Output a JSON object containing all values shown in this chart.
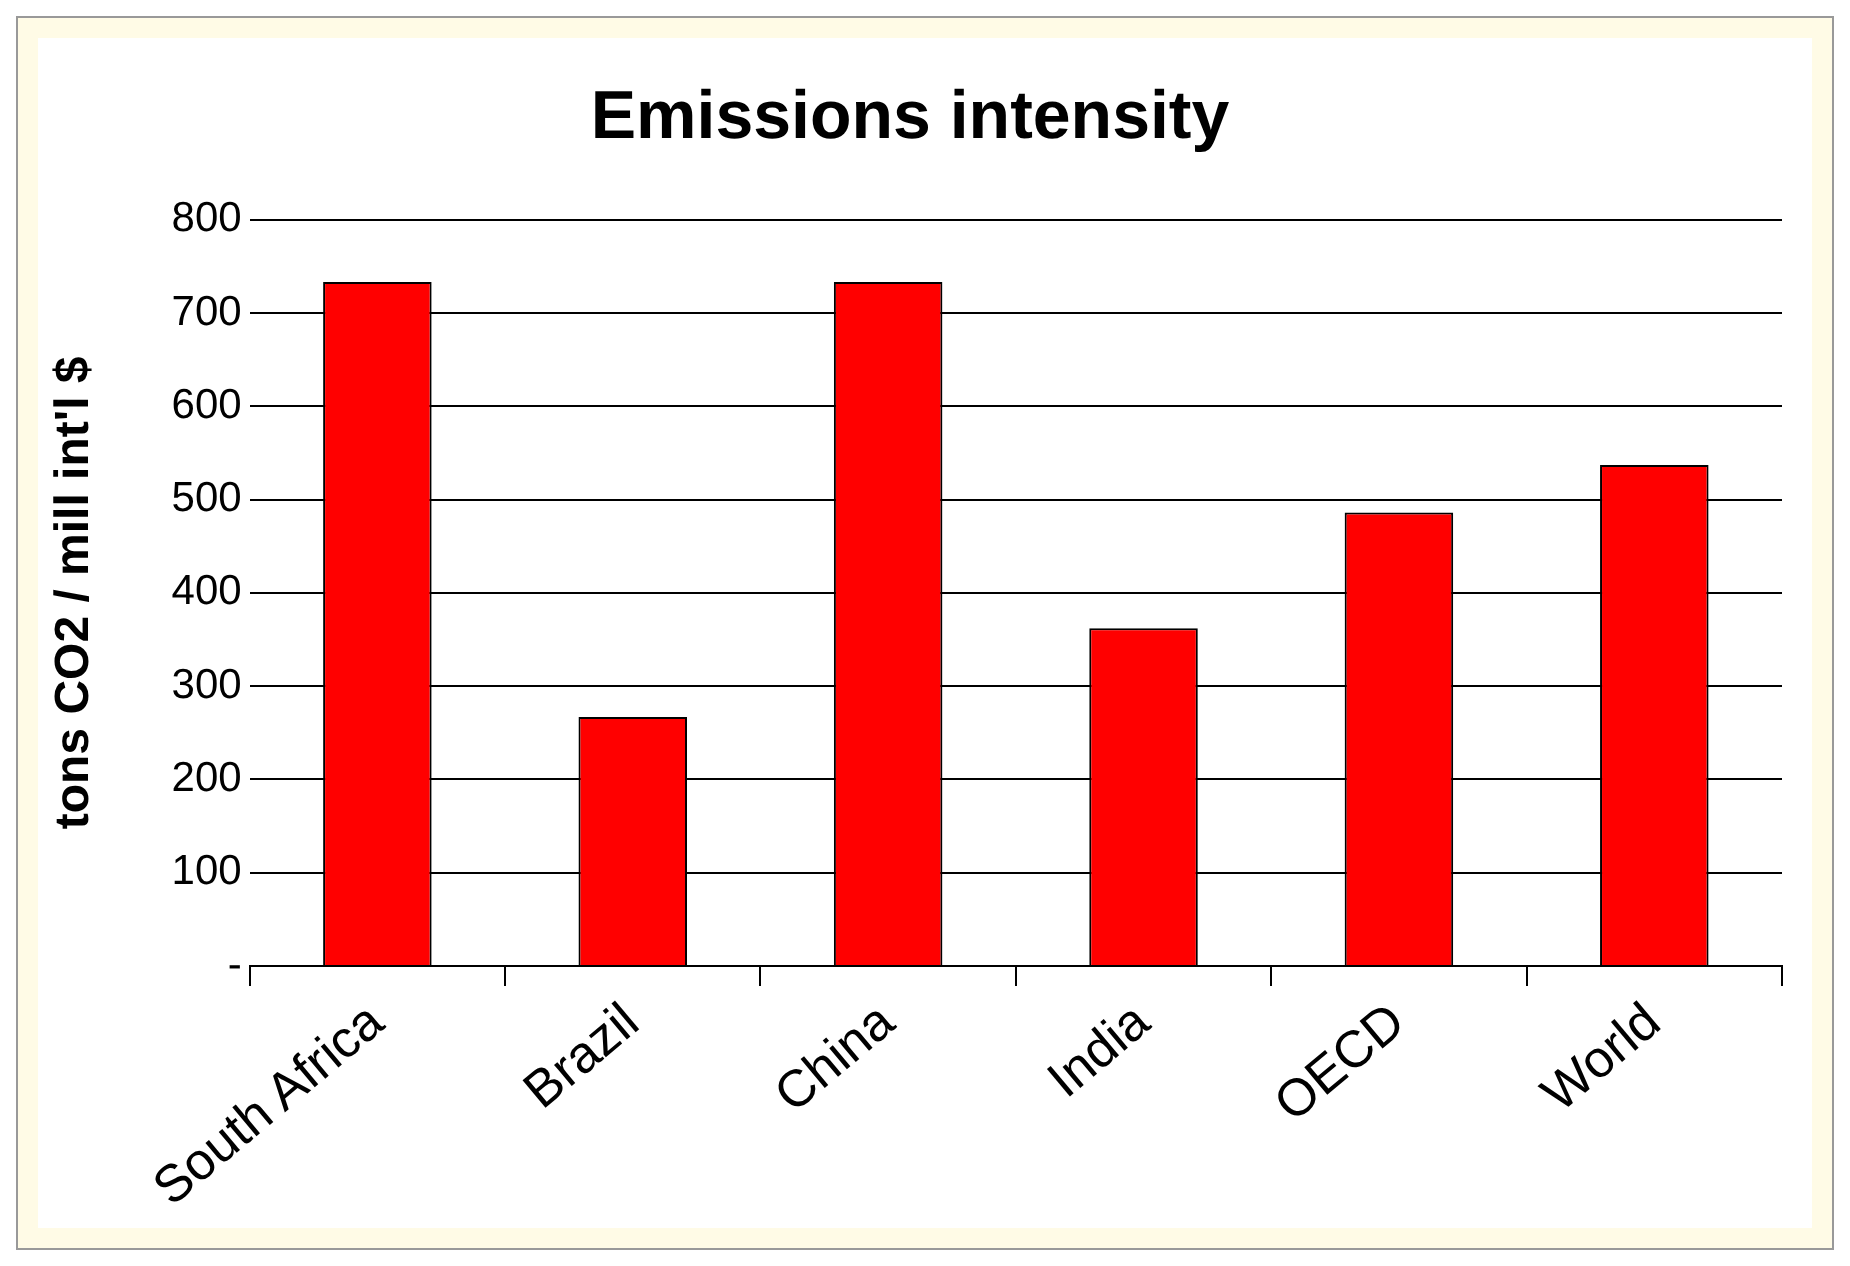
{
  "chart_data": {
    "type": "bar",
    "title": "Emissions intensity",
    "ylabel": "tons CO2 / mill int'l $",
    "categories": [
      "South Africa",
      "Brazil",
      "China",
      "India",
      "OECD",
      "World"
    ],
    "values": [
      733,
      267,
      733,
      362,
      486,
      537
    ],
    "color": "#ff0000",
    "ylim": [
      0,
      800
    ],
    "yticks": [
      {
        "value": 0,
        "label": "-"
      },
      100,
      200,
      300,
      400,
      500,
      600,
      700,
      800
    ],
    "grid": "y",
    "legend": false
  }
}
